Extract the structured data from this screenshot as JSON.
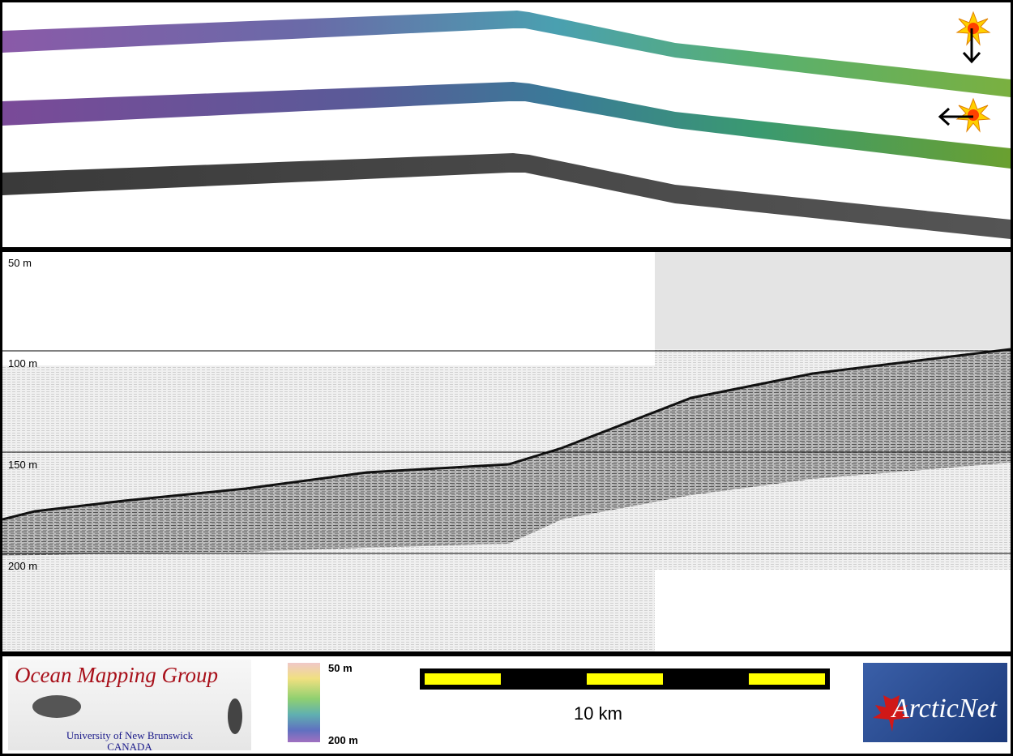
{
  "profile": {
    "depth_labels": [
      "50 m",
      "100 m",
      "150 m",
      "200 m"
    ]
  },
  "legend": {
    "colorbar_top": "50 m",
    "colorbar_bottom": "200 m",
    "scale_label": "10 km"
  },
  "logos": {
    "omg_title": "Ocean Mapping Group",
    "omg_line1": "University of New Brunswick",
    "omg_line2": "CANADA",
    "arctic": "ArcticNet"
  },
  "colors": {
    "scale_fill": "#ffff00",
    "omg_red": "#a8101a"
  },
  "icons": [
    "sun-icon",
    "arrow-down-icon",
    "arrow-left-icon"
  ]
}
